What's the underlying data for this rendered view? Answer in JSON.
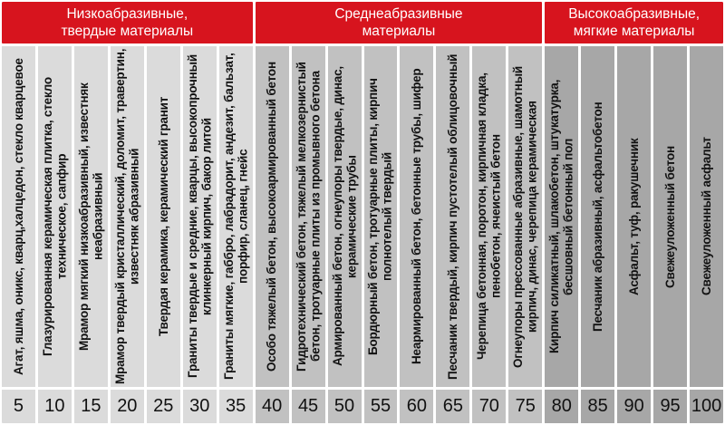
{
  "palette": {
    "header_red": "#d7141e",
    "header_text": "#ffffff",
    "cell_text": "#111111",
    "group_colors": [
      "#dbdbdb",
      "#c1c1c1",
      "#a7a7a7"
    ],
    "gap_color": "#ffffff"
  },
  "groups": [
    {
      "label": "Низкоабразивные, твердые материалы",
      "span": 7
    },
    {
      "label": "Среднеабразивные материалы",
      "span": 8
    },
    {
      "label": "Высокоабразивные, мягкие материалы",
      "span": 5
    }
  ],
  "columns": [
    {
      "group": 0,
      "material": "Агат, яшма, оникс, кварц,халцедон, стекло кварцевое",
      "value": "5"
    },
    {
      "group": 0,
      "material": "Глазурированная керамическая плитка, стекло техническое, сапфир",
      "value": "10"
    },
    {
      "group": 0,
      "material": "Мрамор мягкий низкоабразивный, известняк неабразивный",
      "value": "15"
    },
    {
      "group": 0,
      "material": "Мрамор твердый кристаллический, доломит, травертин, известняк абразивный",
      "value": "20"
    },
    {
      "group": 0,
      "material": "Твердая керамика, керамический гранит",
      "value": "25"
    },
    {
      "group": 0,
      "material": "Граниты твердые и средние, кварцы, высокопрочный клинкерный кирпич, бакор литой",
      "value": "30"
    },
    {
      "group": 0,
      "material": "Граниты мягкие, габбро, лабрадорит, андезит, бальзат, порфир, сланец, гнейс",
      "value": "35"
    },
    {
      "group": 1,
      "material": "Особо тяжелый бетон, высокоармированный бетон",
      "value": "40"
    },
    {
      "group": 1,
      "material": "Гидротехнический бетон, тяжелый мелкозернистый бетон, тротуарные плиты из промывного бетона",
      "value": "45"
    },
    {
      "group": 1,
      "material": "Армированный бетон, огнеупоры твердые, динас, керамические трубы",
      "value": "50"
    },
    {
      "group": 1,
      "material": "Бордюрный бетон, тротуарные плиты, кирпич полнотелый твердый",
      "value": "55"
    },
    {
      "group": 1,
      "material": "Неармированный бетон, бетонные трубы, шифер",
      "value": "60"
    },
    {
      "group": 1,
      "material": "Песчаник твердый, кирпич пустотелый облицовочный",
      "value": "65"
    },
    {
      "group": 1,
      "material": "Черепица бетонная, поротон, кирпичная кладка, пенобетон, ячеистый бетон",
      "value": "70"
    },
    {
      "group": 1,
      "material": "Огнеупоры прессованные абразивные, шамотный кирпич, динас, черепица керамическая",
      "value": "75"
    },
    {
      "group": 2,
      "material": "Кирпич силикатный, шлакобетон, штукатурка, бесшовный бетонный пол",
      "value": "80"
    },
    {
      "group": 2,
      "material": "Песчаник абразивный, асфальтобетон",
      "value": "85"
    },
    {
      "group": 2,
      "material": "Асфальт, туф, ракушечник",
      "value": "90"
    },
    {
      "group": 2,
      "material": "Свежеуложенный бетон",
      "value": "95"
    },
    {
      "group": 2,
      "material": "Свежеуложенный асфальт",
      "value": "100"
    }
  ],
  "chart_data": {
    "type": "table",
    "title": "",
    "legend_position": "top",
    "groups": [
      {
        "label": "Низкоабразивные, твердые материалы",
        "value_range": [
          5,
          35
        ]
      },
      {
        "label": "Среднеабразивные материалы",
        "value_range": [
          40,
          75
        ]
      },
      {
        "label": "Высокоабразивные, мягкие материалы",
        "value_range": [
          80,
          100
        ]
      }
    ],
    "categories": [
      "Агат, яшма, оникс, кварц,халцедон, стекло кварцевое",
      "Глазурированная керамическая плитка, стекло техническое, сапфир",
      "Мрамор мягкий низкоабразивный, известняк неабразивный",
      "Мрамор твердый кристаллический, доломит, травертин, известняк абразивный",
      "Твердая керамика, керамический гранит",
      "Граниты твердые и средние, кварцы, высокопрочный клинкерный кирпич, бакор литой",
      "Граниты мягкие, габбро, лабрадорит, андезит, бальзат, порфир, сланец, гнейс",
      "Особо тяжелый бетон, высокоармированный бетон",
      "Гидротехнический бетон, тяжелый мелкозернистый бетон, тротуарные плиты из промывного бетона",
      "Армированный бетон, огнеупоры твердые, динас, керамические трубы",
      "Бордюрный бетон, тротуарные плиты, кирпич полнотелый твердый",
      "Неармированный бетон, бетонные трубы, шифер",
      "Песчаник твердый, кирпич пустотелый облицовочный",
      "Черепица бетонная, поротон, кирпичная кладка, пенобетон, ячеистый бетон",
      "Огнеупоры прессованные абразивные, шамотный кирпич, динас, черепица керамическая",
      "Кирпич силикатный, шлакобетон, штукатурка, бесшовный бетонный пол",
      "Песчаник абразивный, асфальтобетон",
      "Асфальт, туф, ракушечник",
      "Свежеуложенный бетон",
      "Свежеуложенный асфальт"
    ],
    "values": [
      5,
      10,
      15,
      20,
      25,
      30,
      35,
      40,
      45,
      50,
      55,
      60,
      65,
      70,
      75,
      80,
      85,
      90,
      95,
      100
    ],
    "value_axis": {
      "min": 5,
      "max": 100,
      "step": 5
    }
  }
}
